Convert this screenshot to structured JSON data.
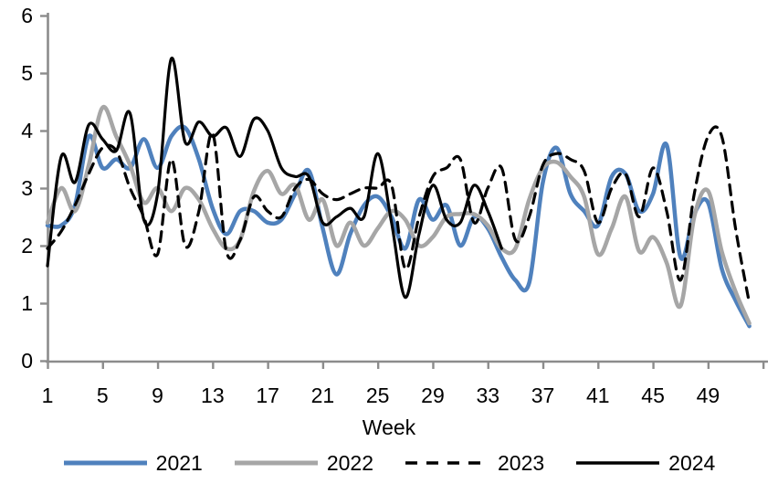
{
  "chart_data": {
    "type": "line",
    "title": "",
    "xlabel": "Week",
    "ylabel": "",
    "x_axis": {
      "min": 1,
      "max": 53,
      "tick_interval": 4,
      "tick_labels": [
        1,
        5,
        9,
        13,
        17,
        21,
        25,
        29,
        33,
        37,
        41,
        45,
        49
      ]
    },
    "y_axis": {
      "min": 0,
      "max": 6,
      "tick_interval": 1,
      "tick_labels": [
        0,
        1,
        2,
        3,
        4,
        5,
        6
      ]
    },
    "grid": "off",
    "legend_position": "bottom",
    "axis_color": "#8C8C8C",
    "weeks": [
      1,
      2,
      3,
      4,
      5,
      6,
      7,
      8,
      9,
      10,
      11,
      12,
      13,
      14,
      15,
      16,
      17,
      18,
      19,
      20,
      21,
      22,
      23,
      24,
      25,
      26,
      27,
      28,
      29,
      30,
      31,
      32,
      33,
      34,
      35,
      36,
      37,
      38,
      39,
      40,
      41,
      42,
      43,
      44,
      45,
      46,
      47,
      48,
      49,
      50,
      51,
      52
    ],
    "series": [
      {
        "name": "2021",
        "color": "#4F81BD",
        "style": "solid",
        "width": 4.5,
        "values": [
          2.35,
          2.35,
          2.7,
          3.9,
          3.35,
          3.5,
          3.35,
          3.85,
          3.35,
          3.9,
          4.05,
          3.5,
          2.65,
          2.2,
          2.6,
          2.6,
          2.4,
          2.45,
          2.9,
          3.3,
          2.3,
          1.5,
          2.2,
          2.7,
          2.85,
          2.5,
          1.95,
          2.8,
          2.45,
          2.7,
          2.0,
          2.5,
          2.3,
          1.8,
          1.4,
          1.35,
          3.1,
          3.7,
          2.9,
          2.6,
          2.35,
          3.2,
          3.25,
          2.6,
          2.9,
          3.75,
          1.8,
          2.55,
          2.75,
          1.6,
          1.05,
          0.6
        ]
      },
      {
        "name": "2022",
        "color": "#A6A6A6",
        "style": "solid",
        "width": 4.5,
        "values": [
          2.4,
          3.0,
          2.6,
          3.4,
          4.4,
          3.9,
          3.4,
          2.75,
          3.0,
          2.6,
          3.0,
          2.8,
          2.3,
          1.95,
          2.1,
          2.95,
          3.3,
          2.9,
          3.05,
          2.45,
          2.8,
          2.0,
          2.4,
          2.0,
          2.3,
          2.6,
          2.45,
          2.0,
          2.15,
          2.5,
          2.55,
          2.55,
          2.35,
          1.95,
          1.95,
          2.8,
          3.35,
          3.45,
          3.2,
          2.85,
          1.85,
          2.3,
          2.85,
          1.9,
          2.15,
          1.7,
          0.95,
          2.5,
          2.95,
          1.9,
          1.2,
          0.65
        ]
      },
      {
        "name": "2023",
        "color": "#000000",
        "style": "dashed",
        "width": 3.2,
        "values": [
          1.95,
          2.25,
          2.7,
          3.25,
          3.7,
          3.65,
          3.0,
          2.5,
          1.85,
          3.5,
          2.0,
          2.6,
          3.95,
          1.9,
          2.1,
          2.85,
          2.6,
          2.5,
          3.0,
          3.15,
          2.9,
          2.8,
          2.9,
          3.0,
          3.0,
          3.05,
          1.6,
          2.5,
          3.2,
          3.35,
          3.5,
          2.4,
          3.0,
          3.35,
          2.1,
          2.5,
          3.4,
          3.6,
          3.5,
          3.3,
          2.4,
          3.0,
          3.25,
          2.5,
          3.35,
          2.6,
          1.4,
          2.9,
          3.9,
          3.9,
          2.3,
          1.0
        ]
      },
      {
        "name": "2024",
        "color": "#000000",
        "style": "solid",
        "width": 3.2,
        "values": [
          1.65,
          3.55,
          3.1,
          4.1,
          3.85,
          3.65,
          4.3,
          2.45,
          2.9,
          5.25,
          3.8,
          4.15,
          3.9,
          4.05,
          3.55,
          4.2,
          4.0,
          3.35,
          3.2,
          3.2,
          2.4,
          2.5,
          2.65,
          2.5,
          3.6,
          2.4,
          1.1,
          2.2,
          3.05,
          2.45,
          2.4,
          3.05,
          2.6,
          1.95
        ]
      }
    ]
  }
}
